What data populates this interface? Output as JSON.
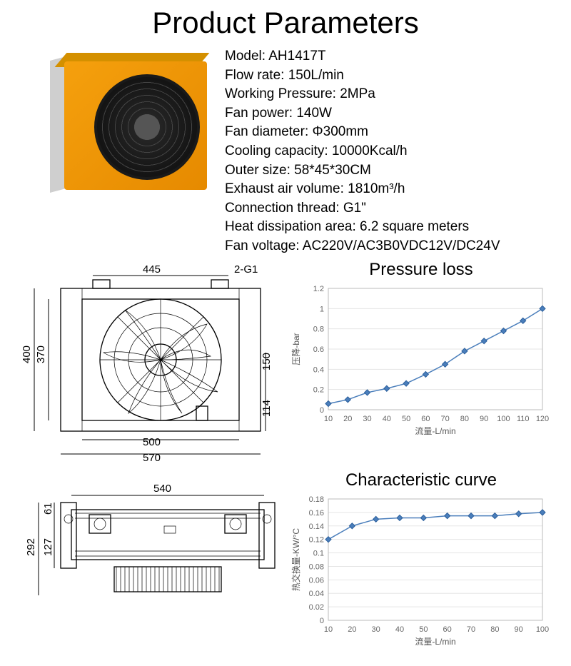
{
  "title": "Product Parameters",
  "specs": [
    {
      "label": "Model",
      "value": "AH1417T"
    },
    {
      "label": "Flow rate",
      "value": "150L/min"
    },
    {
      "label": "Working Pressure",
      "value": "2MPa"
    },
    {
      "label": "Fan power",
      "value": "140W"
    },
    {
      "label": "Fan diameter",
      "value": "Φ300mm"
    },
    {
      "label": "Cooling capacity",
      "value": "10000Kcal/h"
    },
    {
      "label": "Outer size",
      "value": "58*45*30CM"
    },
    {
      "label": "Exhaust air volume",
      "value": "1810m³/h"
    },
    {
      "label": "Connection thread",
      "value": "G1\""
    },
    {
      "label": "Heat dissipation area",
      "value": "6.2 square meters"
    },
    {
      "label": "Fan voltage",
      "value": "AC220V/AC3B0VDC12V/DC24V"
    }
  ],
  "front_drawing": {
    "dims": {
      "top_445": "445",
      "top_2g1": "2-G1",
      "left_400": "400",
      "left_370": "370",
      "right_150": "150",
      "right_114": "114",
      "bottom_500": "500",
      "bottom_570": "570"
    }
  },
  "side_drawing": {
    "dims": {
      "top_540": "540",
      "left_61": "61",
      "left_127": "127",
      "left_292": "292"
    }
  },
  "pressure_chart": {
    "title": "Pressure loss",
    "type": "line",
    "xlabel": "流量-L/min",
    "ylabel": "压降-bar",
    "xlim": [
      10,
      120
    ],
    "ylim": [
      0,
      1.2
    ],
    "xticks": [
      10,
      20,
      30,
      40,
      50,
      60,
      70,
      80,
      90,
      100,
      110,
      120
    ],
    "yticks": [
      0,
      0.2,
      0.4,
      0.6,
      0.8,
      1,
      1.2
    ],
    "x": [
      10,
      20,
      30,
      40,
      50,
      60,
      70,
      80,
      90,
      100,
      110,
      120
    ],
    "y": [
      0.06,
      0.1,
      0.17,
      0.21,
      0.26,
      0.35,
      0.45,
      0.58,
      0.68,
      0.78,
      0.88,
      1.0
    ],
    "line_color": "#4a7ebb",
    "marker_color": "#4a7ebb",
    "grid_color": "#e5e5e5",
    "background_color": "#ffffff",
    "label_fontsize": 11
  },
  "characteristic_chart": {
    "title": "Characteristic curve",
    "type": "line",
    "xlabel": "流量-L/min",
    "ylabel": "热交换量-KW/°C",
    "xlim": [
      10,
      100
    ],
    "ylim": [
      0,
      0.18
    ],
    "xticks": [
      10,
      20,
      30,
      40,
      50,
      60,
      70,
      80,
      90,
      100
    ],
    "yticks": [
      0,
      0.02,
      0.04,
      0.06,
      0.08,
      0.1,
      0.12,
      0.14,
      0.16,
      0.18
    ],
    "x": [
      10,
      20,
      30,
      40,
      50,
      60,
      70,
      80,
      90,
      100
    ],
    "y": [
      0.12,
      0.14,
      0.15,
      0.152,
      0.152,
      0.155,
      0.155,
      0.155,
      0.158,
      0.16
    ],
    "line_color": "#4a7ebb",
    "marker_color": "#4a7ebb",
    "grid_color": "#e5e5e5",
    "background_color": "#ffffff",
    "label_fontsize": 11
  }
}
